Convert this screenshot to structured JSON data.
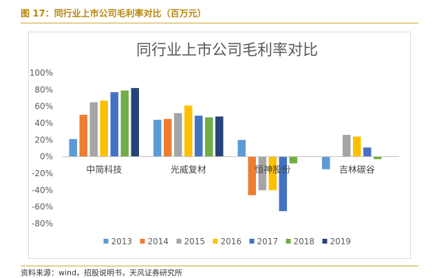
{
  "figure": {
    "caption": "图 17：同行业上市公司毛利率对比（百万元）",
    "source": "资料来源：wind，招股说明书，天风证券研究所"
  },
  "chart_data": {
    "type": "bar",
    "title": "同行业上市公司毛利率对比",
    "xlabel": "",
    "ylabel": "",
    "ylim": [
      -0.8,
      1.0
    ],
    "yticks": [
      1.0,
      0.8,
      0.6,
      0.4,
      0.2,
      0.0,
      -0.2,
      -0.4,
      -0.6,
      -0.8
    ],
    "ytick_labels": [
      "100%",
      "80%",
      "60%",
      "40%",
      "20%",
      "0%",
      "-20%",
      "-40%",
      "-60%",
      "-80%"
    ],
    "categories": [
      "中简科技",
      "光威复材",
      "恒神股份",
      "吉林碳谷"
    ],
    "series": [
      {
        "name": "2013",
        "color": "#5b9bd5",
        "values": [
          0.21,
          0.44,
          0.2,
          -0.15
        ]
      },
      {
        "name": "2014",
        "color": "#ed7d31",
        "values": [
          0.5,
          0.45,
          -0.46,
          0.0
        ]
      },
      {
        "name": "2015",
        "color": "#a5a5a5",
        "values": [
          0.65,
          0.52,
          -0.4,
          0.26
        ]
      },
      {
        "name": "2016",
        "color": "#ffc000",
        "values": [
          0.67,
          0.61,
          -0.4,
          0.24
        ]
      },
      {
        "name": "2017",
        "color": "#4472c4",
        "values": [
          0.77,
          0.49,
          -0.65,
          0.11
        ]
      },
      {
        "name": "2018",
        "color": "#70ad47",
        "values": [
          0.79,
          0.47,
          -0.08,
          -0.03
        ]
      },
      {
        "name": "2019",
        "color": "#264478",
        "values": [
          0.82,
          0.48,
          null,
          null
        ]
      }
    ],
    "grid": false,
    "legend_position": "bottom"
  }
}
